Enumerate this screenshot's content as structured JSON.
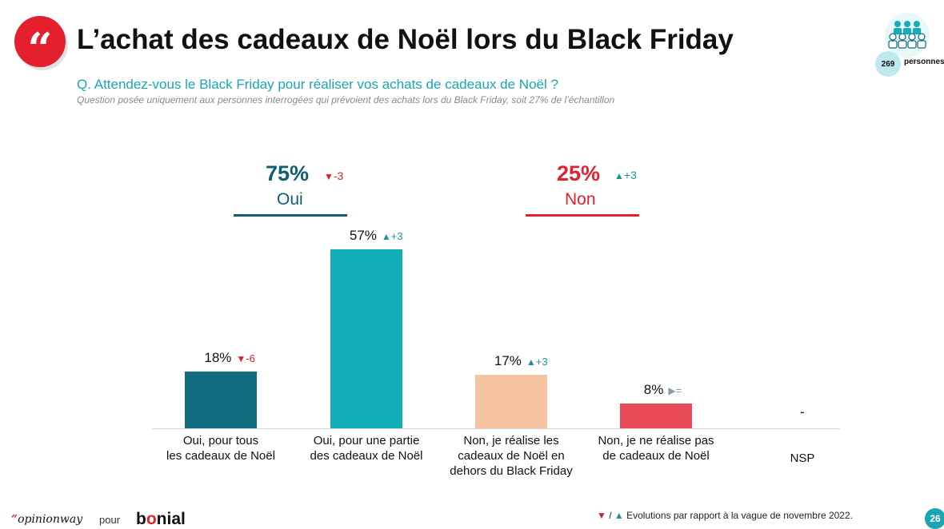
{
  "header": {
    "quote_glyph": "“",
    "title": "L’achat des cadeaux de Noël lors du Black Friday",
    "question": "Q. Attendez-vous le Black Friday pour réaliser vos achats de cadeaux de Noël ?",
    "note": "Question posée uniquement aux personnes interrogées qui prévoient des achats lors du Black Friday, soit 27% de l’échantillon"
  },
  "sample": {
    "count": "269",
    "label": "personnes",
    "icon": "people-group-icon"
  },
  "colors": {
    "oui_dark": "#0f6b7d",
    "teal": "#13aeb8",
    "peach": "#f7c4a3",
    "red_bar": "#e84b55",
    "red": "#e3202c",
    "down": "#d9202c",
    "up": "#1f8fa0",
    "neutral": "#8c9aa6"
  },
  "groups": {
    "oui": {
      "pct": "75%",
      "delta": "-3",
      "direction": "down",
      "label": "Oui"
    },
    "non": {
      "pct": "25%",
      "delta": "+3",
      "direction": "up",
      "label": "Non"
    }
  },
  "chart_data": {
    "type": "bar",
    "categories": [
      [
        "Oui, pour tous",
        "les cadeaux de Noël"
      ],
      [
        "Oui, pour une partie",
        "des cadeaux de Noël"
      ],
      [
        "Non, je réalise les",
        "cadeaux de Noël en",
        "dehors du Black Friday"
      ],
      [
        "Non, je ne réalise pas",
        "de cadeaux de Noël"
      ],
      [
        "NSP"
      ]
    ],
    "values": [
      18,
      57,
      17,
      8,
      null
    ],
    "value_labels": [
      "18%",
      "57%",
      "17%",
      "8%",
      "-"
    ],
    "deltas": [
      "-6",
      "+3",
      "+3",
      "=",
      ""
    ],
    "delta_directions": [
      "down",
      "up",
      "up",
      "neutral",
      "none"
    ],
    "bar_colors": [
      "#0f6b7d",
      "#13aeb8",
      "#f7c4a3",
      "#e84b55",
      "none"
    ],
    "ylim": [
      0,
      57
    ],
    "grid": false
  },
  "footer": {
    "logo_quote": "“",
    "logo_text": "opinionway",
    "pour": "pour",
    "brand_pre": "b",
    "brand_o": "o",
    "brand_post": "nial",
    "legend_slash": " / ",
    "legend_text": " Evolutions par rapport à la vague de novembre 2022.",
    "page_number": "26"
  }
}
